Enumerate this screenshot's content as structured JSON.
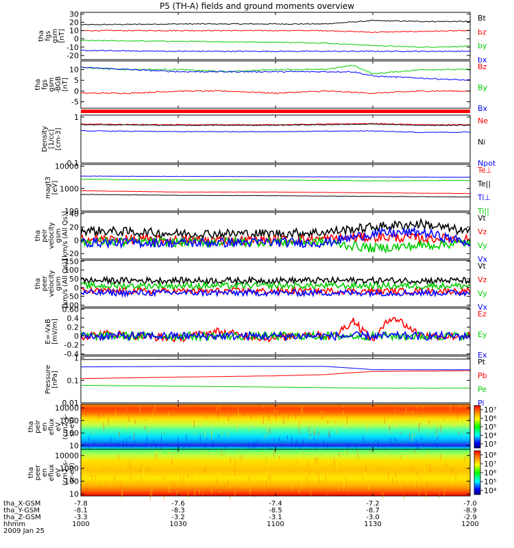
{
  "title": "P5 (TH-A) fields and ground moments overview",
  "chart_data": [
    {
      "type": "line",
      "ylabel_lines": [
        "tha",
        "fgs",
        "gsm",
        "[nT]"
      ],
      "yticks": [
        30,
        20,
        10,
        0,
        -10,
        -20
      ],
      "ylim": [
        -25,
        32
      ],
      "yscale": "linear",
      "legend": [
        "Bt",
        "bz",
        "by",
        "bx"
      ],
      "series": [
        {
          "name": "Bt",
          "color": "#000000",
          "x": [
            10.0,
            10.5,
            11.0,
            11.25,
            11.5,
            11.75,
            12.0
          ],
          "y": [
            17,
            18,
            18,
            18,
            22,
            21,
            21
          ]
        },
        {
          "name": "bz",
          "color": "#ff0000",
          "x": [
            10.0,
            10.5,
            11.0,
            11.25,
            11.5,
            11.75,
            12.0
          ],
          "y": [
            10,
            10,
            10,
            10,
            8,
            9,
            10
          ]
        },
        {
          "name": "by",
          "color": "#00cc00",
          "x": [
            10.0,
            10.5,
            11.0,
            11.25,
            11.5,
            11.75,
            12.0
          ],
          "y": [
            -2,
            -3,
            -4,
            -5,
            -8,
            -10,
            -9
          ]
        },
        {
          "name": "bx",
          "color": "#0000ff",
          "x": [
            10.0,
            10.5,
            11.0,
            11.25,
            11.5,
            11.75,
            12.0
          ],
          "y": [
            -14,
            -15,
            -15,
            -15,
            -15,
            -15,
            -15
          ]
        }
      ]
    },
    {
      "type": "line",
      "ylabel_lines": [
        "tha",
        "fgs",
        "gsm",
        "-BGB",
        "[nT]"
      ],
      "yticks": [
        10,
        5,
        0,
        -5
      ],
      "ylim": [
        -8,
        14
      ],
      "yscale": "linear",
      "legend": [
        "Bz",
        "By",
        "Bx"
      ],
      "series": [
        {
          "name": "Bz",
          "color": "#ff0000",
          "x": [
            10.0,
            10.25,
            10.5,
            10.75,
            11.0,
            11.25,
            11.5,
            11.75,
            12.0
          ],
          "y": [
            -1,
            -1,
            0,
            0,
            -1,
            0,
            -1,
            0,
            0
          ]
        },
        {
          "name": "By",
          "color": "#00cc00",
          "x": [
            10.0,
            10.25,
            10.5,
            10.75,
            11.0,
            11.25,
            11.4,
            11.5,
            11.75,
            12.0
          ],
          "y": [
            11,
            10,
            10,
            9,
            10,
            10,
            12,
            8,
            10,
            10
          ]
        },
        {
          "name": "Bx",
          "color": "#0000ff",
          "x": [
            10.0,
            10.25,
            10.5,
            10.75,
            11.0,
            11.25,
            11.4,
            11.5,
            11.75,
            12.0
          ],
          "y": [
            11,
            10,
            9,
            9,
            9,
            9,
            9,
            7,
            6,
            5
          ]
        }
      ]
    },
    {
      "type": "line",
      "ylabel_lines": [
        "Density",
        "[1/cc]",
        "[cm-3]"
      ],
      "yticks": [
        1.0,
        0.1
      ],
      "ylim": [
        0.1,
        1.1
      ],
      "yscale": "log",
      "legend": [
        "Ne",
        "Ni",
        "Npot"
      ],
      "series": [
        {
          "name": "Ne",
          "color": "#ff0000",
          "x": [
            10.0,
            10.5,
            11.0,
            11.25,
            11.5,
            11.75,
            12.0
          ],
          "y": [
            0.7,
            0.68,
            0.68,
            0.7,
            0.72,
            0.68,
            0.68
          ]
        },
        {
          "name": "Ni",
          "color": "#000000",
          "x": [
            10.0,
            10.5,
            11.0,
            11.25,
            11.5,
            11.75,
            12.0
          ],
          "y": [
            0.68,
            0.66,
            0.66,
            0.68,
            0.7,
            0.66,
            0.66
          ]
        },
        {
          "name": "Npot",
          "color": "#0000ff",
          "x": [
            10.0,
            10.5,
            11.0,
            11.25,
            11.5,
            11.75,
            12.0
          ],
          "y": [
            0.5,
            0.48,
            0.48,
            0.49,
            0.5,
            0.46,
            0.47
          ]
        }
      ]
    },
    {
      "type": "line",
      "ylabel_lines": [
        "magt3",
        "[eV]"
      ],
      "yticks": [
        10000,
        1000,
        100
      ],
      "ylim": [
        100,
        12000
      ],
      "yscale": "log",
      "legend": [
        "Te⊥",
        "Te||",
        "Ti⊥",
        "Ti||"
      ],
      "series": [
        {
          "name": "Ti⊥",
          "color": "#0000ff",
          "x": [
            10.0,
            10.5,
            11.0,
            11.5,
            12.0
          ],
          "y": [
            3600,
            3500,
            3400,
            3300,
            3200
          ]
        },
        {
          "name": "Ti||",
          "color": "#00cc00",
          "x": [
            10.0,
            10.5,
            11.0,
            11.5,
            12.0
          ],
          "y": [
            2600,
            2400,
            2400,
            2200,
            2300
          ]
        },
        {
          "name": "Te⊥",
          "color": "#ff0000",
          "x": [
            10.0,
            10.5,
            11.0,
            11.5,
            12.0
          ],
          "y": [
            800,
            700,
            700,
            650,
            600
          ]
        },
        {
          "name": "Te||",
          "color": "#000000",
          "x": [
            10.0,
            10.5,
            11.0,
            11.5,
            12.0
          ],
          "y": [
            550,
            500,
            480,
            450,
            420
          ]
        }
      ]
    },
    {
      "type": "line",
      "ylabel_lines": [
        "tha",
        "peir",
        "velocity",
        "gsm",
        "[km/s (All Qs)]"
      ],
      "yticks": [
        40,
        20,
        0,
        -20
      ],
      "ylim": [
        -28,
        42
      ],
      "yscale": "linear",
      "legend": [
        "Vt",
        "Vz",
        "Vy",
        "Vx"
      ],
      "series": [
        {
          "name": "Vt",
          "color": "#000000",
          "x": [
            10.0,
            10.5,
            11.0,
            11.25,
            11.5,
            11.75,
            12.0
          ],
          "y": [
            15,
            10,
            10,
            12,
            20,
            25,
            12
          ]
        },
        {
          "name": "Vz",
          "color": "#ff0000",
          "x": [
            10.0,
            10.5,
            11.0,
            11.25,
            11.5,
            11.75,
            12.0
          ],
          "y": [
            2,
            0,
            0,
            2,
            5,
            3,
            2
          ]
        },
        {
          "name": "Vy",
          "color": "#00cc00",
          "x": [
            10.0,
            10.5,
            11.0,
            11.25,
            11.5,
            11.75,
            12.0
          ],
          "y": [
            -2,
            -3,
            -2,
            -3,
            -12,
            -8,
            -3
          ]
        },
        {
          "name": "Vx",
          "color": "#0000ff",
          "x": [
            10.0,
            10.5,
            11.0,
            11.25,
            11.5,
            11.75,
            12.0
          ],
          "y": [
            -3,
            -4,
            -3,
            -4,
            10,
            12,
            -4
          ]
        }
      ]
    },
    {
      "type": "line",
      "ylabel_lines": [
        "tha",
        "peer",
        "velocity",
        "gsm",
        "[km/s (All Qs)]"
      ],
      "yticks": [
        150,
        100,
        50,
        0,
        -50,
        -100
      ],
      "ylim": [
        -110,
        155
      ],
      "yscale": "linear",
      "legend": [
        "Vt",
        "Vz",
        "Vy",
        "Vx"
      ],
      "series": [
        {
          "name": "Vt",
          "color": "#000000",
          "x": [
            10.0,
            10.5,
            11.0,
            11.5,
            12.0
          ],
          "y": [
            40,
            40,
            40,
            40,
            40
          ]
        },
        {
          "name": "Vz",
          "color": "#ff0000",
          "x": [
            10.0,
            10.5,
            11.0,
            11.5,
            12.0
          ],
          "y": [
            -20,
            -20,
            -20,
            -20,
            -20
          ]
        },
        {
          "name": "Vy",
          "color": "#00cc00",
          "x": [
            10.0,
            10.5,
            11.0,
            11.5,
            12.0
          ],
          "y": [
            10,
            10,
            10,
            10,
            10
          ]
        },
        {
          "name": "Vx",
          "color": "#0000ff",
          "x": [
            10.0,
            10.5,
            11.0,
            11.5,
            12.0
          ],
          "y": [
            -30,
            -30,
            -30,
            -30,
            -30
          ]
        }
      ]
    },
    {
      "type": "line",
      "ylabel_lines": [
        "E=-VxB",
        "[mV/m]"
      ],
      "yticks": [
        0.6,
        0.4,
        0.2,
        0.0,
        -0.2,
        -0.4
      ],
      "ylim": [
        -0.42,
        0.62
      ],
      "yscale": "linear",
      "legend": [
        "Ez",
        "Ey",
        "Ex"
      ],
      "series": [
        {
          "name": "Ez",
          "color": "#ff0000",
          "x": [
            10.0,
            10.15,
            10.3,
            10.5,
            10.7,
            10.85,
            11.0,
            11.15,
            11.3,
            11.4,
            11.5,
            11.6,
            11.75,
            11.85,
            12.0
          ],
          "y": [
            0.0,
            0.05,
            0.0,
            -0.05,
            0.1,
            0.0,
            -0.05,
            0.05,
            0.0,
            0.35,
            -0.1,
            0.45,
            0.0,
            0.0,
            0.0
          ]
        },
        {
          "name": "Ey",
          "color": "#00cc00",
          "x": [
            10.0,
            10.5,
            11.0,
            11.5,
            12.0
          ],
          "y": [
            0.0,
            0.0,
            0.0,
            0.0,
            0.0
          ]
        },
        {
          "name": "Ex",
          "color": "#0000ff",
          "x": [
            10.0,
            10.5,
            11.0,
            11.5,
            12.0
          ],
          "y": [
            0.0,
            0.0,
            0.0,
            0.0,
            0.0
          ]
        }
      ]
    },
    {
      "type": "line",
      "ylabel_lines": [
        "Pressure",
        "[nPa]"
      ],
      "yticks": [
        1.0,
        0.1,
        0.01
      ],
      "ylim": [
        0.01,
        1.2
      ],
      "yscale": "log",
      "legend": [
        "Pt",
        "Pb",
        "Pe",
        "Pi"
      ],
      "series": [
        {
          "name": "Pt",
          "color": "#000000",
          "x": [
            10.0,
            10.5,
            11.0,
            11.5,
            12.0
          ],
          "y": [
            0.85,
            0.88,
            0.9,
            0.92,
            0.9
          ]
        },
        {
          "name": "Pi",
          "color": "#0000ff",
          "x": [
            10.0,
            10.5,
            11.0,
            11.25,
            11.5,
            11.75,
            12.0
          ],
          "y": [
            0.4,
            0.42,
            0.42,
            0.42,
            0.3,
            0.3,
            0.3
          ]
        },
        {
          "name": "Pb",
          "color": "#ff0000",
          "x": [
            10.0,
            10.5,
            11.0,
            11.25,
            11.5,
            11.75,
            12.0
          ],
          "y": [
            0.12,
            0.14,
            0.16,
            0.18,
            0.25,
            0.26,
            0.27
          ]
        },
        {
          "name": "Pe",
          "color": "#00cc00",
          "x": [
            10.0,
            10.5,
            11.0,
            11.5,
            12.0
          ],
          "y": [
            0.06,
            0.055,
            0.05,
            0.045,
            0.045
          ]
        }
      ]
    },
    {
      "type": "heatmap",
      "ylabel_lines": [
        "tha",
        "peir",
        "en",
        "eflux",
        "eV",
        "(cm2-s-",
        "sr-eV)"
      ],
      "yticks": [
        10000,
        1000,
        100,
        10
      ],
      "ylim": [
        5,
        20000
      ],
      "yscale": "log",
      "colorbar_ticks": [
        "10⁷",
        "10⁶",
        "10⁵",
        "10⁴",
        "10³"
      ]
    },
    {
      "type": "heatmap",
      "ylabel_lines": [
        "tha",
        "peer",
        "en",
        "eflux",
        "eV",
        "(cm2-s-",
        "sr-eV)"
      ],
      "yticks": [
        10000,
        1000,
        100,
        10
      ],
      "ylim": [
        7,
        30000
      ],
      "yscale": "log",
      "colorbar_ticks": [
        "10⁸",
        "10⁷",
        "10⁶",
        "10⁵",
        "10⁴"
      ]
    }
  ],
  "xaxis": {
    "rows": [
      {
        "label": "tha_X-GSM",
        "values": [
          "-7.8",
          "-7.6",
          "-7.4",
          "-7.2",
          "-7.0"
        ]
      },
      {
        "label": "tha_Y-GSM",
        "values": [
          "-8.1",
          "-8.3",
          "-8.5",
          "-8.7",
          "-8.9"
        ]
      },
      {
        "label": "tha_Z-GSM",
        "values": [
          "-3.3",
          "-3.2",
          "-3.1",
          "-3.0",
          "-2.9"
        ]
      },
      {
        "label": "hhmm",
        "values": [
          "1000",
          "1030",
          "1100",
          "1130",
          "1200"
        ]
      }
    ],
    "date": "2009 Jan 25"
  }
}
